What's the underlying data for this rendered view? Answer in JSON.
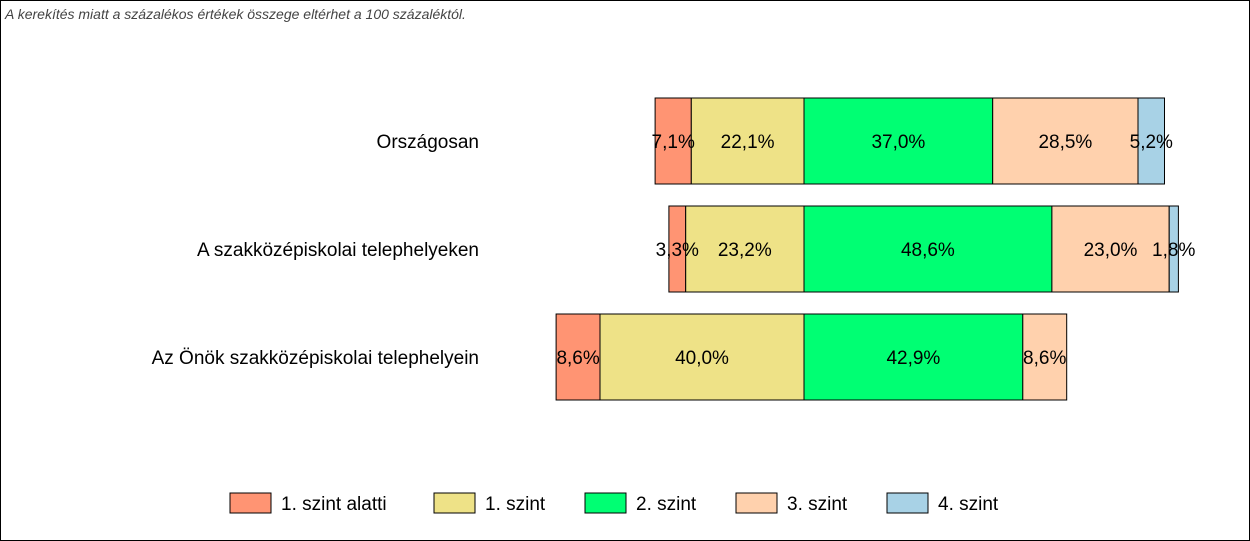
{
  "note": "A kerekítés miatt a  százalékos értékek összege eltérhet a 100 százaléktól.",
  "chart_data": {
    "type": "bar",
    "orientation": "horizontal",
    "stacked": "diverging",
    "categories": [
      "Országosan",
      "A szakközépiskolai telephelyeken",
      "Az Önök szakközépiskolai telephelyein"
    ],
    "series": [
      {
        "name": "1. szint alatti",
        "color": "#FF9473",
        "values": [
          7.1,
          3.3,
          8.6
        ],
        "labels": [
          "7,1%",
          "3,3%",
          "8,6%"
        ]
      },
      {
        "name": "1. szint",
        "color": "#EEE287",
        "values": [
          22.1,
          23.2,
          40.0
        ],
        "labels": [
          "22,1%",
          "23,2%",
          "40,0%"
        ]
      },
      {
        "name": "2. szint",
        "color": "#00FF73",
        "values": [
          37.0,
          48.6,
          42.9
        ],
        "labels": [
          "37,0%",
          "48,6%",
          "42,9%"
        ]
      },
      {
        "name": "3. szint",
        "color": "#FFD1AD",
        "values": [
          28.5,
          23.0,
          8.6
        ],
        "labels": [
          "28,5%",
          "23,0%",
          "8,6%"
        ]
      },
      {
        "name": "4. szint",
        "color": "#A8D2E6",
        "values": [
          5.2,
          1.8,
          0
        ],
        "labels": [
          "5,2%",
          "1,8%",
          ""
        ]
      }
    ],
    "legend_position": "bottom",
    "grid": false
  }
}
